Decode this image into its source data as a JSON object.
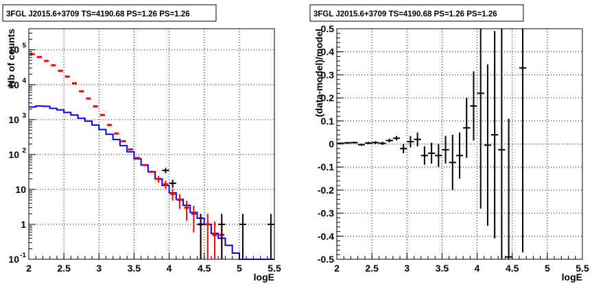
{
  "chart_data": [
    {
      "type": "histogram",
      "title": "3FGL J2015.6+3709 TS=4190.68 PS=1.26 PS=1.26",
      "xlabel": "logE",
      "ylabel": "Nb of counts",
      "xlim": [
        2,
        5.5
      ],
      "ylim": [
        0.1,
        400000
      ],
      "yscale": "log",
      "grid": true,
      "x_ticks": [
        "2",
        "2.5",
        "3",
        "3.5",
        "4",
        "4.5",
        "5",
        "5.5"
      ],
      "y_ticks": [
        {
          "base": "10",
          "exp": "-1"
        },
        {
          "base": "1",
          "exp": ""
        },
        {
          "base": "10",
          "exp": ""
        },
        {
          "base": "10",
          "exp": "2"
        },
        {
          "base": "10",
          "exp": "3"
        },
        {
          "base": "10",
          "exp": "4"
        },
        {
          "base": "10",
          "exp": "5"
        }
      ],
      "bin_width": 0.1,
      "series": [
        {
          "color": "#0000ff",
          "style": "step",
          "x": [
            2.05,
            2.15,
            2.25,
            2.35,
            2.45,
            2.55,
            2.65,
            2.75,
            2.85,
            2.95,
            3.05,
            3.15,
            3.25,
            3.35,
            3.45,
            3.55,
            3.65,
            3.75,
            3.85,
            3.95,
            4.05,
            4.15,
            4.25,
            4.35,
            4.45,
            4.55,
            4.65,
            4.75,
            4.85,
            4.95,
            5.05,
            5.15,
            5.25,
            5.35,
            5.45
          ],
          "values": [
            2300,
            2450,
            2400,
            2100,
            1900,
            1600,
            1350,
            1100,
            900,
            700,
            520,
            380,
            270,
            180,
            120,
            75,
            50,
            32,
            20,
            13,
            8,
            5.2,
            3.5,
            2.2,
            1.5,
            1.0,
            0.55,
            0.4,
            0.25,
            0.15,
            0.1,
            0.1,
            0.1,
            0.1,
            0.1
          ]
        },
        {
          "color": "#ff0000",
          "style": "markers",
          "x": [
            2.05,
            2.15,
            2.25,
            2.35,
            2.45,
            2.55,
            2.65,
            2.75,
            2.85,
            2.95,
            3.05,
            3.15,
            3.25,
            3.35,
            3.45,
            3.55,
            3.65,
            3.75,
            3.85,
            3.95,
            4.05,
            4.15,
            4.25,
            4.35,
            4.45,
            4.55,
            4.65,
            4.75
          ],
          "values": [
            75000,
            62000,
            48000,
            36000,
            25000,
            17000,
            11000,
            6500,
            4000,
            2400,
            1350,
            700,
            400,
            240,
            140,
            80,
            50,
            32,
            20,
            14,
            7.5,
            5,
            3,
            2,
            1,
            1,
            0.5,
            0.5
          ]
        },
        {
          "color": "#000000",
          "style": "errorbars",
          "x": [
            3.95,
            4.05,
            4.45,
            4.75,
            5.05,
            5.45
          ],
          "values": [
            35,
            15,
            1,
            1,
            1,
            1
          ]
        }
      ]
    },
    {
      "type": "errorbar",
      "title": "3FGL J2015.6+3709 TS=4190.68 PS=1.26 PS=1.26",
      "xlabel": "logE",
      "ylabel": "(data-model)/model",
      "xlim": [
        2,
        5.5
      ],
      "ylim": [
        -0.5,
        0.5
      ],
      "grid": true,
      "x_ticks": [
        "2",
        "2.5",
        "3",
        "3.5",
        "4",
        "4.5",
        "5",
        "5.5"
      ],
      "y_ticks": [
        "-0.5",
        "-0.4",
        "-0.3",
        "-0.2",
        "-0.1",
        "0",
        "0.1",
        "0.2",
        "0.3",
        "0.4",
        "0.5"
      ],
      "bin_width": 0.1,
      "series": [
        {
          "color": "#000000",
          "x": [
            2.05,
            2.15,
            2.25,
            2.35,
            2.45,
            2.55,
            2.65,
            2.75,
            2.85,
            2.95,
            3.05,
            3.15,
            3.25,
            3.35,
            3.45,
            3.55,
            3.65,
            3.75,
            3.85,
            3.95,
            4.05,
            4.15,
            4.25,
            4.35,
            4.45,
            4.65
          ],
          "values": [
            0.003,
            0.005,
            0.006,
            -0.003,
            0.004,
            0.006,
            0.003,
            0.015,
            0.025,
            -0.02,
            0.01,
            0.02,
            -0.05,
            -0.04,
            -0.05,
            -0.025,
            -0.08,
            -0.05,
            0.07,
            0.165,
            0.22,
            -0.005,
            0.04,
            -0.025,
            -0.49,
            0.33
          ],
          "errors": [
            0.004,
            0.004,
            0.004,
            0.005,
            0.005,
            0.006,
            0.007,
            0.008,
            0.01,
            0.02,
            0.025,
            0.03,
            0.04,
            0.045,
            0.05,
            0.06,
            0.12,
            0.1,
            0.13,
            0.15,
            0.5,
            0.35,
            0.45,
            0.55,
            0.6,
            0.8
          ]
        }
      ]
    }
  ]
}
